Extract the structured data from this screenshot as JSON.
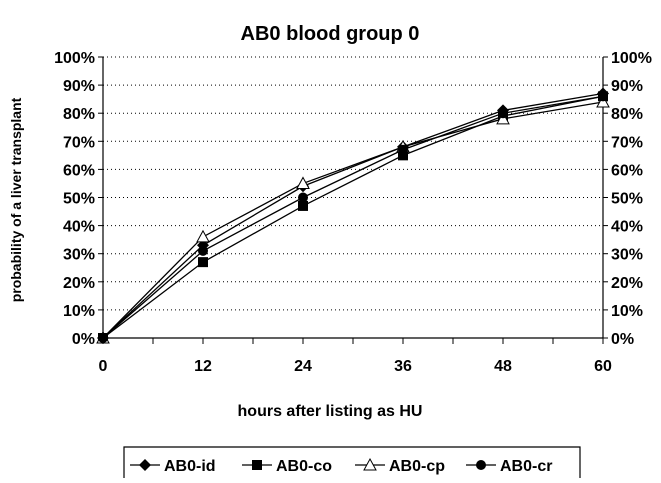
{
  "chart_data": {
    "type": "line",
    "title": "AB0 blood group 0",
    "xlabel": "hours after listing as HU",
    "ylabel": "probability of a liver transplant",
    "x": [
      0,
      12,
      24,
      36,
      48,
      60
    ],
    "x_ticks": [
      "0",
      "12",
      "24",
      "36",
      "48",
      "60"
    ],
    "y_ticks": [
      "0%",
      "10%",
      "20%",
      "30%",
      "40%",
      "50%",
      "60%",
      "70%",
      "80%",
      "90%",
      "100%"
    ],
    "ylim": [
      0,
      100
    ],
    "grid": "horizontal dotted",
    "legend_position": "bottom",
    "secondary_y_axis": true,
    "series": [
      {
        "name": "AB0-id",
        "marker": "diamond-filled",
        "values": [
          0,
          33,
          54,
          68,
          81,
          87
        ]
      },
      {
        "name": "AB0-co",
        "marker": "square-filled",
        "values": [
          0,
          27,
          47,
          65,
          79,
          86
        ]
      },
      {
        "name": "AB0-cp",
        "marker": "triangle-open",
        "values": [
          0,
          36,
          55,
          68,
          78,
          84
        ]
      },
      {
        "name": "AB0-cr",
        "marker": "circle-filled",
        "values": [
          0,
          31,
          50,
          67,
          80,
          86
        ]
      }
    ]
  }
}
